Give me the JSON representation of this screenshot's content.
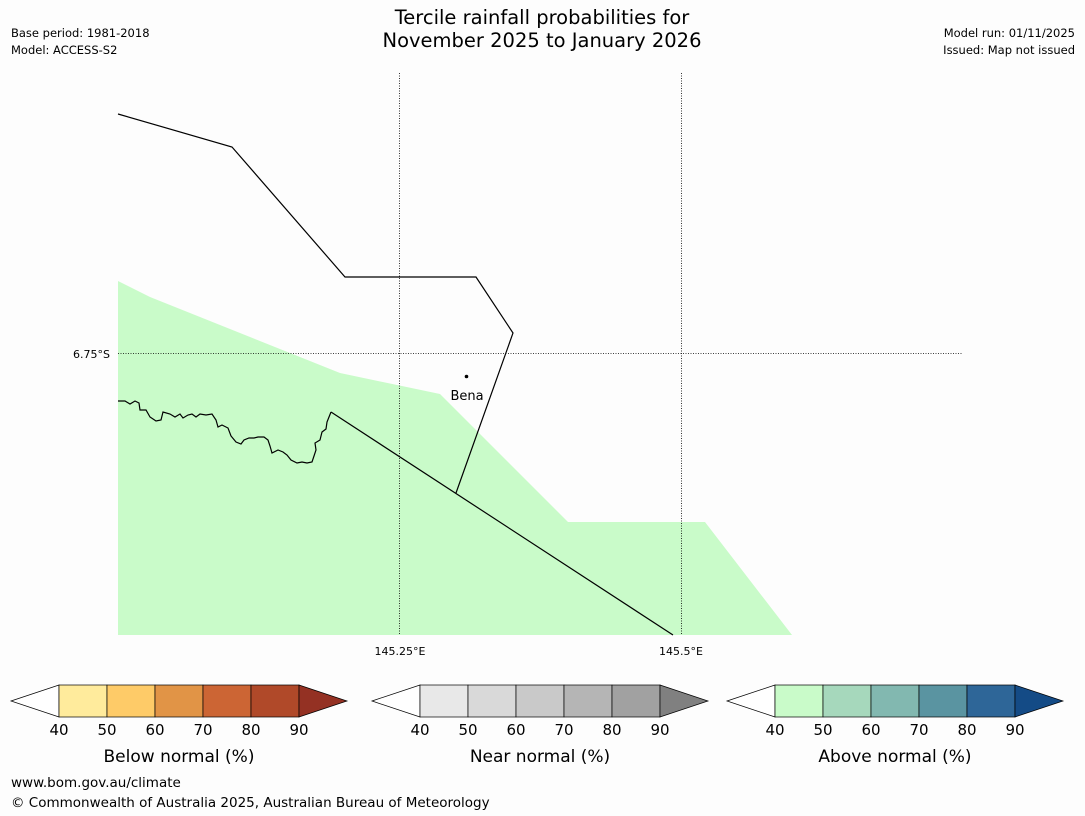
{
  "header": {
    "title_line1": "Tercile rainfall probabilities for",
    "title_line2": "November 2025 to January 2026",
    "base_period": "Base period: 1981-2018",
    "model": "Model: ACCESS-S2",
    "model_run": "Model run: 01/11/2025",
    "issued": "Issued: Map not issued"
  },
  "map": {
    "latitude_label": "6.75°S",
    "longitude_labels": [
      "145.25°E",
      "145.5°E"
    ],
    "place_name": "Bena",
    "fill_color": "#c9fbc9",
    "boundary_color": "#000000"
  },
  "legends": [
    {
      "title": "Below normal (%)",
      "ticks": [
        "40",
        "50",
        "60",
        "70",
        "80",
        "90"
      ],
      "colors": [
        "#ffffff",
        "#ffeb9c",
        "#fecb68",
        "#e19446",
        "#cc6534",
        "#b04929",
        "#943123"
      ]
    },
    {
      "title": "Near normal (%)",
      "ticks": [
        "40",
        "50",
        "60",
        "70",
        "80",
        "90"
      ],
      "colors": [
        "#ffffff",
        "#e8e8e8",
        "#d9d9d9",
        "#c9c9c9",
        "#b5b5b5",
        "#a1a1a1",
        "#808080"
      ]
    },
    {
      "title": "Above normal (%)",
      "ticks": [
        "40",
        "50",
        "60",
        "70",
        "80",
        "90"
      ],
      "colors": [
        "#ffffff",
        "#c9fbc9",
        "#a6d8bc",
        "#82b8b0",
        "#5a94a1",
        "#2e6698",
        "#144b86"
      ]
    }
  ],
  "footer": {
    "url": "www.bom.gov.au/climate",
    "copyright": "© Commonwealth of Australia 2025, Australian Bureau of Meteorology"
  }
}
